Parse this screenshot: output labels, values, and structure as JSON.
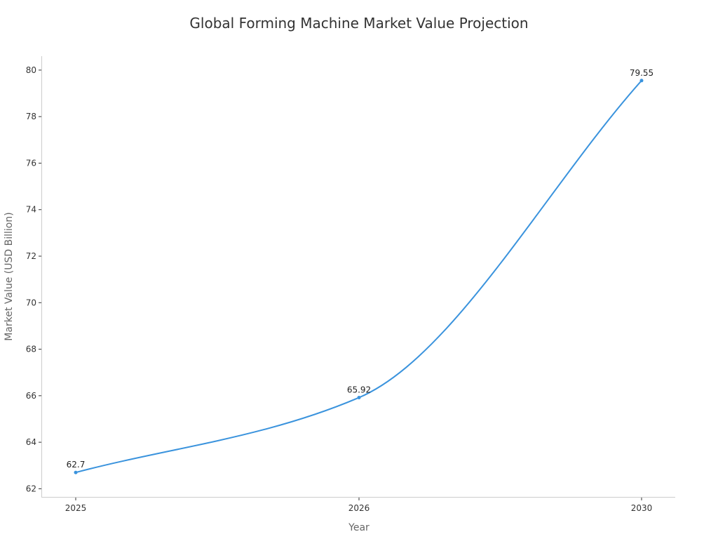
{
  "chart_data": {
    "type": "line",
    "title": "Global Forming Machine Market Value Projection",
    "xlabel": "Year",
    "ylabel": "Market Value (USD Billion)",
    "categories": [
      "2025",
      "2026",
      "2030"
    ],
    "series": [
      {
        "values": [
          62.7,
          65.92,
          79.55
        ],
        "color": "#3a93dd"
      }
    ],
    "data_labels": [
      "62.7",
      "65.92",
      "79.55"
    ],
    "y_ticks": [
      62,
      64,
      66,
      68,
      70,
      72,
      74,
      76,
      78,
      80
    ],
    "ylim": [
      61.65,
      80.6
    ],
    "grid": false,
    "legend": "none",
    "smooth": true
  }
}
